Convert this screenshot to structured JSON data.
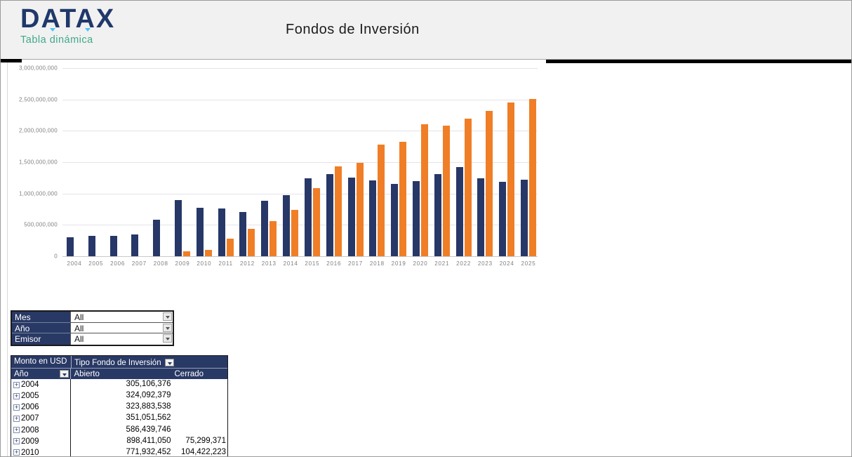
{
  "header": {
    "logo": "DATAX",
    "logo_subtitle": "Tabla dinámica",
    "title": "Fondos de Inversión"
  },
  "chart_data": {
    "type": "bar",
    "title": "Fondos de Inversión",
    "xlabel": "Año",
    "ylabel": "Monto en USD",
    "ylim": [
      0,
      3000000000
    ],
    "ytick_step": 500000000,
    "grid": true,
    "legend_position": "none",
    "categories": [
      "2004",
      "2005",
      "2006",
      "2007",
      "2008",
      "2009",
      "2010",
      "2011",
      "2012",
      "2013",
      "2014",
      "2015",
      "2016",
      "2017",
      "2018",
      "2019",
      "2020",
      "2021",
      "2022",
      "2023",
      "2024",
      "2025"
    ],
    "series": [
      {
        "name": "Abierto",
        "color": "#273767",
        "values": [
          305106376,
          324092379,
          323883538,
          351051562,
          586439746,
          898411050,
          771932452,
          760000000,
          705000000,
          885000000,
          975000000,
          1240000000,
          1315000000,
          1255000000,
          1210000000,
          1155000000,
          1195000000,
          1305000000,
          1420000000,
          1240000000,
          1190000000,
          1215000000
        ]
      },
      {
        "name": "Cerrado",
        "color": "#f07e26",
        "values": [
          0,
          0,
          0,
          0,
          0,
          75299371,
          104422223,
          280000000,
          440000000,
          555000000,
          740000000,
          1090000000,
          1435000000,
          1485000000,
          1775000000,
          1830000000,
          2110000000,
          2085000000,
          2190000000,
          2320000000,
          2455000000,
          2510000000
        ]
      }
    ]
  },
  "filters": {
    "rows": [
      {
        "label": "Mes",
        "value": "All"
      },
      {
        "label": "Año",
        "value": "All"
      },
      {
        "label": "Emisor",
        "value": "All"
      }
    ]
  },
  "pivot": {
    "measure_label": "Monto en USD",
    "column_field": "Tipo Fondo de Inversión",
    "row_field": "Año",
    "columns": [
      "Abierto",
      "Cerrado"
    ],
    "rows": [
      {
        "year": "2004",
        "abierto": "305,106,376",
        "cerrado": ""
      },
      {
        "year": "2005",
        "abierto": "324,092,379",
        "cerrado": ""
      },
      {
        "year": "2006",
        "abierto": "323,883,538",
        "cerrado": ""
      },
      {
        "year": "2007",
        "abierto": "351,051,562",
        "cerrado": ""
      },
      {
        "year": "2008",
        "abierto": "586,439,746",
        "cerrado": ""
      },
      {
        "year": "2009",
        "abierto": "898,411,050",
        "cerrado": "75,299,371"
      },
      {
        "year": "2010",
        "abierto": "771,932,452",
        "cerrado": "104,422,223"
      }
    ]
  },
  "colors": {
    "bar_abierto": "#273767",
    "bar_cerrado": "#f07e26",
    "pivot_header": "#293965",
    "logo_navy": "#20386b",
    "logo_green": "#3fa98a",
    "logo_cyan": "#4fc3f0"
  }
}
